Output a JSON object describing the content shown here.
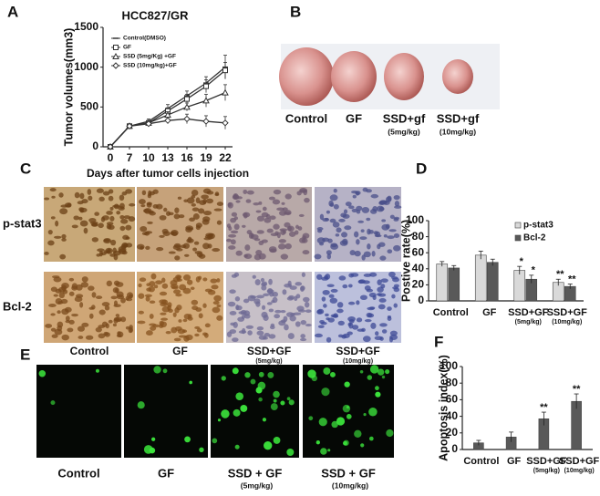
{
  "panel_labels": [
    "A",
    "B",
    "C",
    "D",
    "E",
    "F"
  ],
  "tumor_photos": {
    "labels": [
      "Control",
      "GF",
      "SSD+gf",
      "SSD+gf"
    ],
    "sublabels": [
      null,
      null,
      "(5mg/kg)",
      "(10mg/kg)"
    ]
  },
  "ihc_images": {
    "rows": [
      "p-stat3",
      "Bcl-2"
    ],
    "columns": [
      "Control",
      "GF",
      "SSD+GF",
      "SSD+GF"
    ],
    "sublabels": [
      null,
      null,
      "(5mg/kg)",
      "(10mg/kg)"
    ]
  },
  "fluorescence_images": {
    "columns": [
      "Control",
      "GF",
      "SSD + GF",
      "SSD + GF"
    ],
    "sublabels": [
      null,
      null,
      "(5mg/kg)",
      "(10mg/kg)"
    ]
  },
  "chart_data": [
    {
      "type": "line",
      "title": "HCC827/GR",
      "x_label": "Days after tumor cells  injection",
      "y_label": "Tumor volumes(mm3)",
      "categories": [
        "0",
        "7",
        "10",
        "13",
        "16",
        "19",
        "22"
      ],
      "ylim": [
        0,
        1500
      ],
      "yticks": [
        0,
        500,
        1000,
        1500
      ],
      "grid": false,
      "series": [
        {
          "name": "Control(DMSO)",
          "color": "#333333",
          "marker": "dash",
          "values": [
            0,
            260,
            320,
            480,
            640,
            800,
            1000
          ],
          "errors": [
            0,
            20,
            30,
            50,
            60,
            80,
            150
          ]
        },
        {
          "name": "GF",
          "color": "#333333",
          "marker": "square",
          "values": [
            0,
            260,
            300,
            450,
            600,
            760,
            960
          ],
          "errors": [
            0,
            20,
            30,
            40,
            60,
            80,
            100
          ]
        },
        {
          "name": "SSD (5mg/Kg) +GF",
          "color": "#333333",
          "marker": "triangle",
          "values": [
            0,
            260,
            300,
            400,
            500,
            580,
            680
          ],
          "errors": [
            0,
            20,
            30,
            40,
            50,
            80,
            100
          ]
        },
        {
          "name": "SSD (10mg/kg)+GF",
          "color": "#333333",
          "marker": "diamond",
          "values": [
            0,
            260,
            290,
            330,
            350,
            320,
            300
          ],
          "errors": [
            0,
            20,
            30,
            40,
            60,
            70,
            80
          ]
        }
      ]
    },
    {
      "type": "bar",
      "y_label": "Postive rate(%)",
      "categories": [
        "Control",
        "GF",
        "SSD+GF",
        "SSD+GF"
      ],
      "category_sublabels": [
        null,
        null,
        "(5mg/kg)",
        "(10mg/kg)"
      ],
      "ylim": [
        0,
        100
      ],
      "yticks": [
        0,
        20,
        40,
        60,
        80,
        100
      ],
      "grid": false,
      "legend": "upper right",
      "series": [
        {
          "name": "p-stat3",
          "color": "#d9d9d9",
          "values": [
            46,
            57,
            38,
            23
          ],
          "errors": [
            3,
            5,
            5,
            4
          ],
          "significance": [
            null,
            null,
            "*",
            "**"
          ]
        },
        {
          "name": "Bcl-2",
          "color": "#595959",
          "values": [
            41,
            48,
            27,
            18
          ],
          "errors": [
            3,
            4,
            5,
            3
          ],
          "significance": [
            null,
            null,
            "*",
            "**"
          ]
        }
      ]
    },
    {
      "type": "bar",
      "y_label": "Apoptosis index(%)",
      "categories": [
        "Control",
        "GF",
        "SSD+GF",
        "SSD+GF"
      ],
      "category_sublabels": [
        null,
        null,
        "(5mg/kg)",
        "(10mg/kg)"
      ],
      "ylim": [
        0,
        100
      ],
      "yticks": [
        0,
        20,
        40,
        60,
        80,
        100
      ],
      "grid": false,
      "series": [
        {
          "color": "#595959",
          "values": [
            8,
            15,
            37,
            58
          ],
          "errors": [
            3,
            6,
            8,
            9
          ],
          "significance": [
            null,
            null,
            "**",
            "**"
          ]
        }
      ]
    }
  ]
}
